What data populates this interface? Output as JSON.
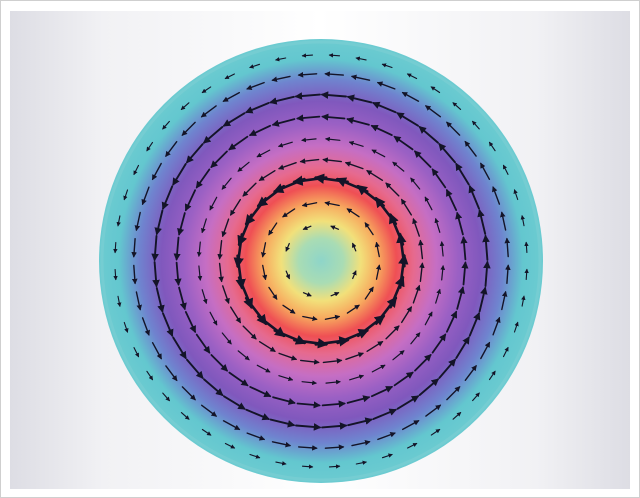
{
  "figure": {
    "subject": "",
    "colors": {
      "rim": "#63c7cf",
      "outer_band": "#8b5cc2",
      "peak_ring": "#ef4f54",
      "center": "#8cd4c8",
      "arrow": "#141428"
    },
    "arrow_rings": [
      {
        "ring": 1,
        "arrow_count": 8
      },
      {
        "ring": 2,
        "arrow_count": 16
      },
      {
        "ring": 3,
        "arrow_count": 24
      },
      {
        "ring": 4,
        "arrow_count": 28
      },
      {
        "ring": 5,
        "arrow_count": 32
      },
      {
        "ring": 6,
        "arrow_count": 36
      },
      {
        "ring": 7,
        "arrow_count": 40
      },
      {
        "ring": 8,
        "arrow_count": 44
      },
      {
        "ring": 9,
        "arrow_count": 48
      }
    ],
    "arrow_direction": "counter-clockwise"
  }
}
